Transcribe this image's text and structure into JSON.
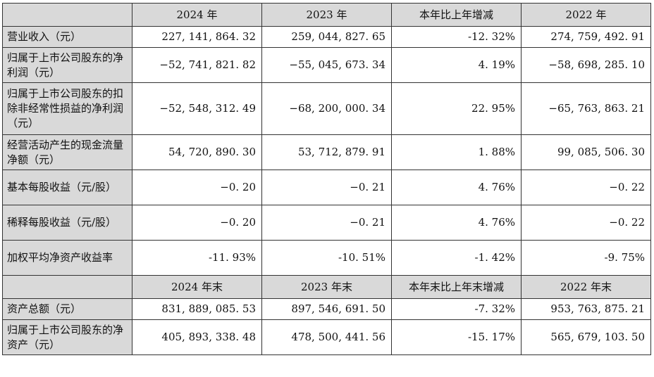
{
  "header1": {
    "label": "",
    "col1": "2024 年",
    "col2": "2023 年",
    "col3": "本年比上年增减",
    "col4": "2022 年"
  },
  "header2": {
    "label": "",
    "col1": "2024 年末",
    "col2": "2023 年末",
    "col3": "本年末比上年末增减",
    "col4": "2022 年末"
  },
  "rows1": [
    {
      "label": "营业收入（元）",
      "v1": "227, 141, 864. 32",
      "v2": "259, 044, 827. 65",
      "v3": "-12. 32%",
      "v4": "274, 759, 492. 91"
    },
    {
      "label": "归属于上市公司股东的净利润（元）",
      "v1": "−52, 741, 821. 82",
      "v2": "−55, 045, 673. 34",
      "v3": "4. 19%",
      "v4": "−58, 698, 285. 10"
    },
    {
      "label": "归属于上市公司股东的扣除非经常性损益的净利润（元）",
      "v1": "−52, 548, 312. 49",
      "v2": "−68, 200, 000. 34",
      "v3": "22. 95%",
      "v4": "−65, 763, 863. 21"
    },
    {
      "label": "经营活动产生的现金流量净额（元）",
      "v1": "54, 720, 890. 30",
      "v2": "53, 712, 879. 91",
      "v3": "1. 88%",
      "v4": "99, 085, 506. 30"
    },
    {
      "label": "基本每股收益（元/股）",
      "v1": "−0. 20",
      "v2": "−0. 21",
      "v3": "4. 76%",
      "v4": "−0. 22"
    },
    {
      "label": "稀释每股收益（元/股）",
      "v1": "−0. 20",
      "v2": "−0. 21",
      "v3": "4. 76%",
      "v4": "−0. 22"
    },
    {
      "label": "加权平均净资产收益率",
      "v1": "-11. 93%",
      "v2": "-10. 51%",
      "v3": "-1. 42%",
      "v4": "-9. 75%"
    }
  ],
  "rows2": [
    {
      "label": "资产总额（元）",
      "v1": "831, 889, 085. 53",
      "v2": "897, 546, 691. 50",
      "v3": "-7. 32%",
      "v4": "953, 763, 875. 21"
    },
    {
      "label": "归属于上市公司股东的净资产（元）",
      "v1": "405, 893, 338. 48",
      "v2": "478, 500, 441. 56",
      "v3": "-15. 17%",
      "v4": "565, 679, 103. 50"
    }
  ]
}
